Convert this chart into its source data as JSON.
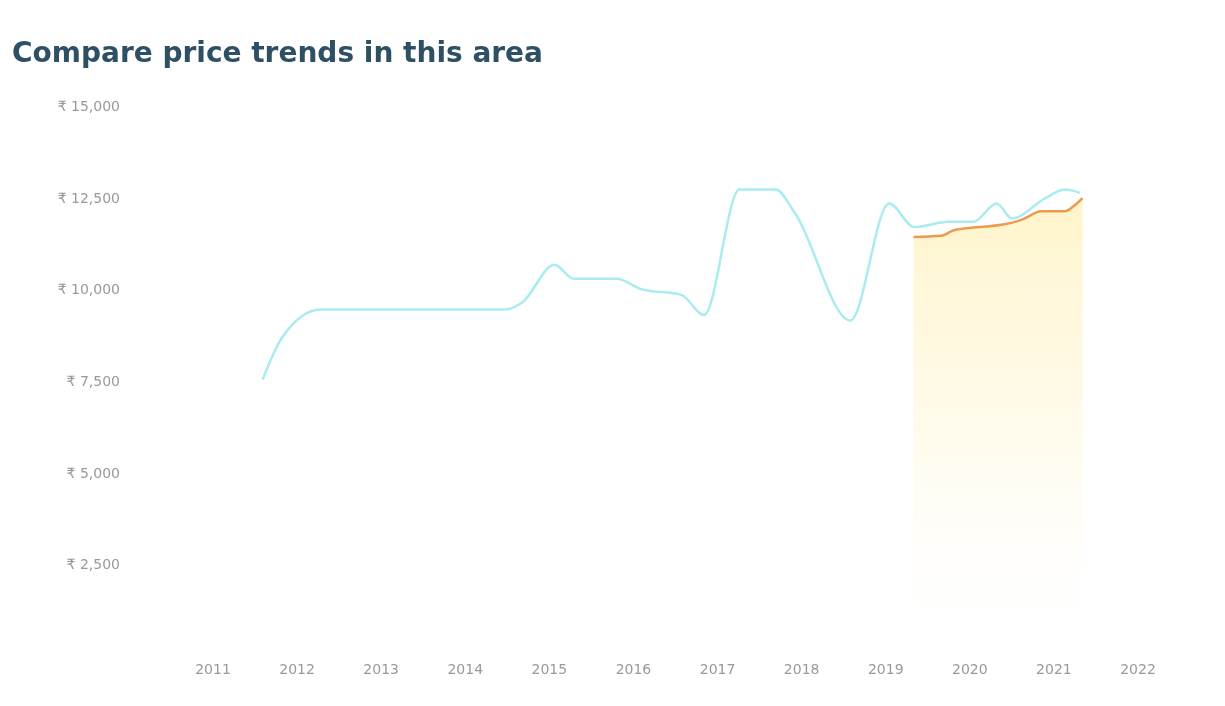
{
  "chart_data": {
    "type": "line",
    "title": "Compare price trends in this area",
    "xlim": [
      2011,
      2022
    ],
    "xticks": [
      2011,
      2012,
      2013,
      2014,
      2015,
      2016,
      2017,
      2018,
      2019,
      2020,
      2021,
      2022
    ],
    "ylim": [
      0,
      15000
    ],
    "yticks": [
      {
        "value": 2500,
        "label": "₹ 2,500"
      },
      {
        "value": 5000,
        "label": "₹ 5,000"
      },
      {
        "value": 7500,
        "label": "₹ 7,500"
      },
      {
        "value": 10000,
        "label": "₹ 10,000"
      },
      {
        "value": 12500,
        "label": "₹ 12,500"
      },
      {
        "value": 15000,
        "label": "₹ 15,000"
      }
    ],
    "grid": false,
    "legend": false,
    "series": [
      {
        "type": "line",
        "color": "#a8ecef",
        "x": [
          2011.59,
          2011.82,
          2012.28,
          2014.48,
          2014.68,
          2015.06,
          2015.29,
          2015.8,
          2016.1,
          2016.57,
          2016.84,
          2017.26,
          2017.69,
          2017.92,
          2018.58,
          2019.04,
          2019.34,
          2019.74,
          2020.04,
          2020.32,
          2020.5,
          2020.9,
          2021.13,
          2021.31
        ],
        "values": [
          7540,
          8680,
          9450,
          9450,
          9650,
          10670,
          10290,
          10290,
          10000,
          9850,
          9300,
          12720,
          12720,
          12080,
          9150,
          12340,
          11700,
          11840,
          11840,
          12340,
          11930,
          12490,
          12720,
          12630
        ]
      },
      {
        "type": "area",
        "color": "#ee9a4e",
        "x": [
          2019.33,
          2019.66,
          2019.81,
          2020.12,
          2020.43,
          2020.62,
          2020.85,
          2021.13,
          2021.24,
          2021.34
        ],
        "values": [
          11430,
          11460,
          11610,
          11700,
          11780,
          11900,
          12130,
          12130,
          12280,
          12490
        ]
      }
    ]
  }
}
